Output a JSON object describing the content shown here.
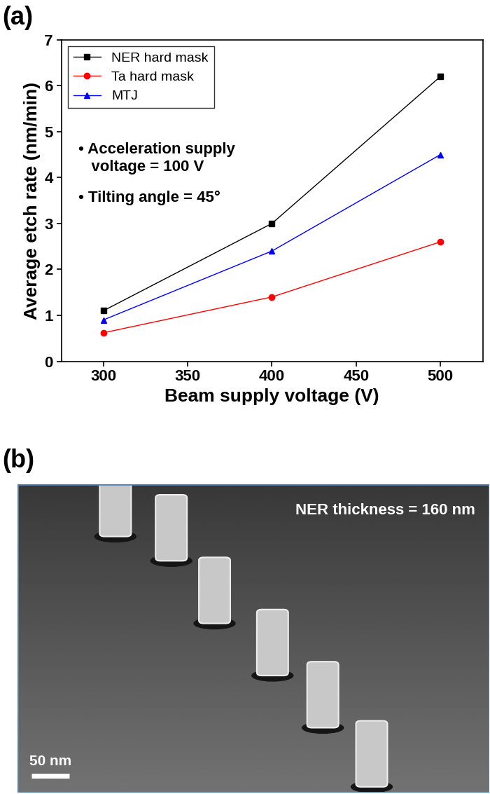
{
  "panel_labels": [
    "(a)",
    "(b)"
  ],
  "chart_data": {
    "type": "line",
    "x_label": "Beam supply voltage (V)",
    "y_label": "Average etch rate (nm/min)",
    "x": [
      300,
      400,
      500
    ],
    "series": [
      {
        "name": "NER hard mask",
        "color": "#000000",
        "marker": "square",
        "line_style": "solid",
        "values": [
          1.1,
          3.0,
          6.2
        ]
      },
      {
        "name": "Ta hard mask",
        "color": "#ff0000",
        "marker": "circle",
        "line_style": "solid",
        "values": [
          0.62,
          1.4,
          2.6
        ]
      },
      {
        "name": "MTJ",
        "color": "#0000ff",
        "marker": "triangle",
        "line_style": "solid",
        "values": [
          0.9,
          2.4,
          4.5
        ]
      }
    ],
    "annotations": [
      "• Acceleration supply\n   voltage = 100 V",
      "• Tilting angle = 45°"
    ],
    "xlim": [
      275,
      525
    ],
    "xticks": [
      300,
      350,
      400,
      450,
      500
    ],
    "ylim": [
      0,
      7
    ],
    "yticks": [
      0,
      1,
      2,
      3,
      4,
      5,
      6,
      7
    ],
    "legend": "upper left",
    "grid": false
  },
  "image": {
    "annotation": "NER thickness = 160 nm",
    "scale_bar": "50 nm"
  }
}
